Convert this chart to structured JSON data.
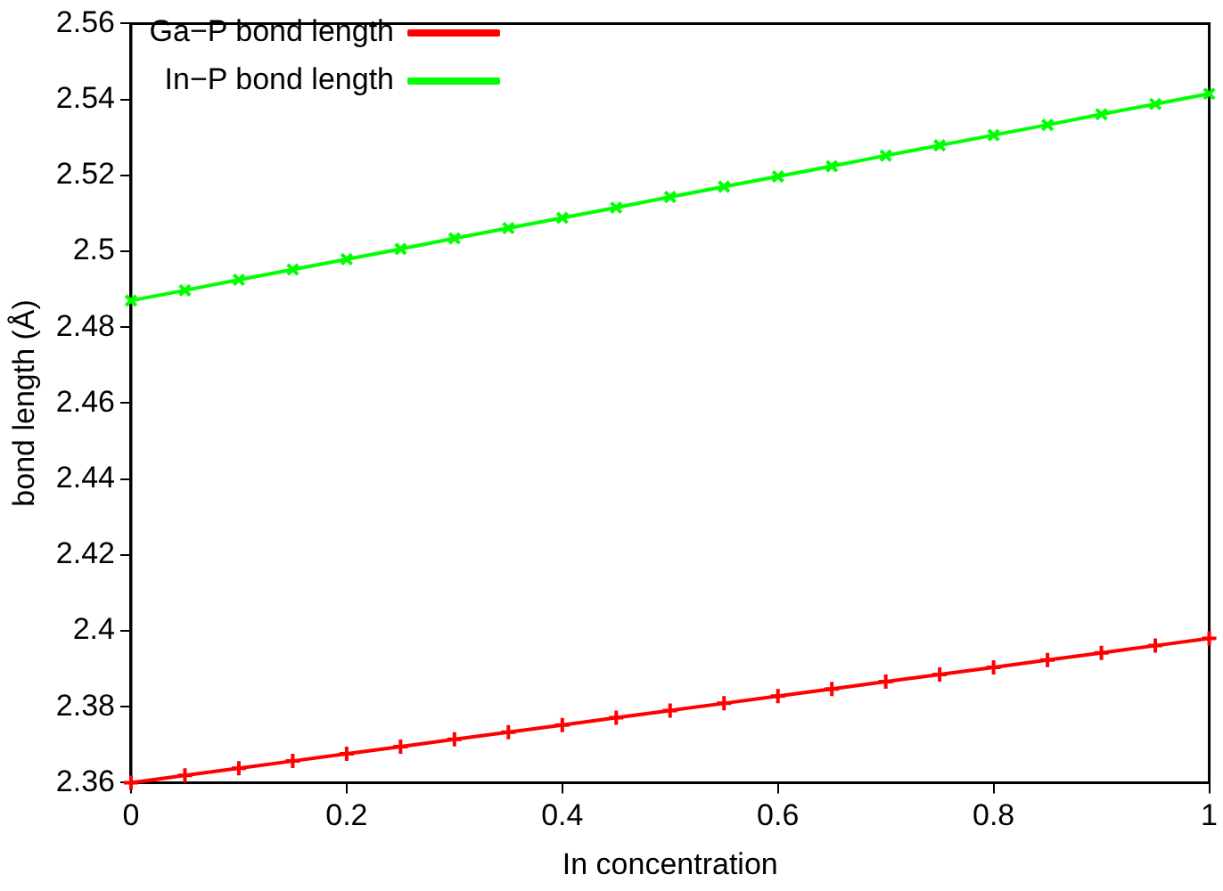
{
  "chart_data": {
    "type": "line",
    "xlabel": "In concentration",
    "ylabel": "bond length (Å)",
    "x": [
      0,
      0.05,
      0.1,
      0.15,
      0.2,
      0.25,
      0.3,
      0.35,
      0.4,
      0.45,
      0.5,
      0.55,
      0.6,
      0.65,
      0.7,
      0.75,
      0.8,
      0.85,
      0.9,
      0.95,
      1
    ],
    "series": [
      {
        "name": "Ga−P bond length",
        "color": "#ff0000",
        "marker": "cross",
        "values": [
          2.36,
          2.3619,
          2.3638,
          2.3657,
          2.3676,
          2.3695,
          2.3714,
          2.3733,
          2.3752,
          2.3771,
          2.379,
          2.3809,
          2.3828,
          2.3847,
          2.3866,
          2.3885,
          2.3904,
          2.3923,
          2.3942,
          2.3961,
          2.398
        ]
      },
      {
        "name": "In−P bond length",
        "color": "#00ff00",
        "marker": "x",
        "values": [
          2.487,
          2.4897,
          2.4925,
          2.4952,
          2.4979,
          2.5006,
          2.5034,
          2.5061,
          2.5088,
          2.5115,
          2.5143,
          2.517,
          2.5197,
          2.5224,
          2.5252,
          2.5279,
          2.5306,
          2.5333,
          2.5361,
          2.5388,
          2.5415
        ]
      }
    ],
    "xlim": [
      0,
      1
    ],
    "xticks": [
      0,
      0.2,
      0.4,
      0.6,
      0.8,
      1
    ],
    "ylim": [
      2.36,
      2.56
    ],
    "yticks": [
      2.36,
      2.38,
      2.4,
      2.42,
      2.44,
      2.46,
      2.48,
      2.5,
      2.52,
      2.54,
      2.56
    ],
    "grid": false,
    "legend": "top left",
    "line_style": "solid"
  }
}
